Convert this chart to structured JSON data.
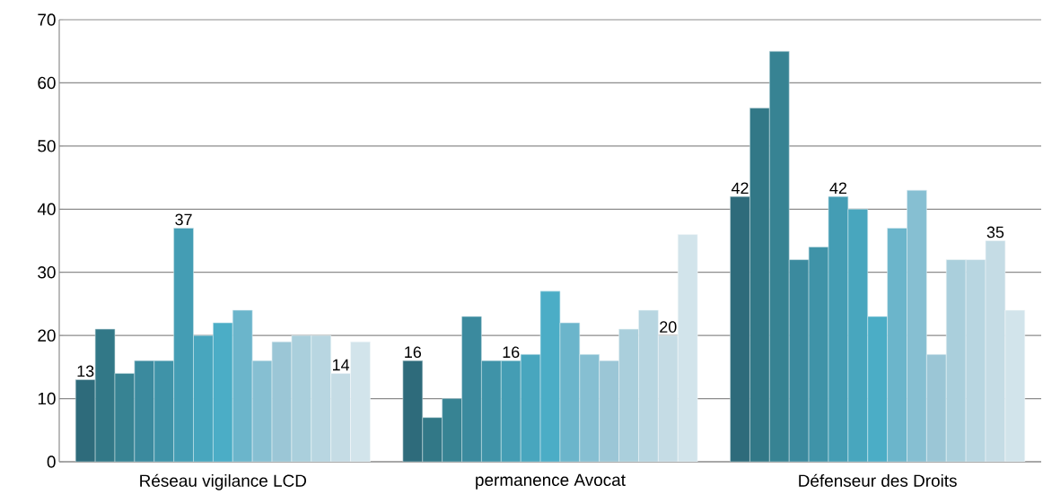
{
  "chart_data": {
    "type": "bar",
    "categories": [
      "Réseau vigilance LCD",
      "permanence Avocat",
      "Défenseur des Droits"
    ],
    "series": [
      {
        "color": "#2e6b7b",
        "values": [
          13,
          16,
          42
        ],
        "value_labels": [
          "13",
          "16",
          "42"
        ]
      },
      {
        "color": "#327887",
        "values": [
          21,
          7,
          56
        ]
      },
      {
        "color": "#378393",
        "values": [
          14,
          10,
          65
        ]
      },
      {
        "color": "#3b8a9e",
        "values": [
          16,
          23,
          32
        ]
      },
      {
        "color": "#3f93a8",
        "values": [
          16,
          16,
          34
        ]
      },
      {
        "color": "#449db4",
        "values": [
          37,
          16,
          42
        ],
        "value_labels": [
          "37",
          "16",
          "42"
        ]
      },
      {
        "color": "#48a6be",
        "values": [
          20,
          17,
          40
        ]
      },
      {
        "color": "#4badc6",
        "values": [
          22,
          27,
          23
        ]
      },
      {
        "color": "#6bb5cb",
        "values": [
          24,
          22,
          37
        ]
      },
      {
        "color": "#86bfd2",
        "values": [
          16,
          17,
          43
        ]
      },
      {
        "color": "#9bc6d6",
        "values": [
          19,
          16,
          17
        ]
      },
      {
        "color": "#aacfdc",
        "values": [
          20,
          21,
          32
        ]
      },
      {
        "color": "#b8d6e1",
        "values": [
          20,
          24,
          32
        ]
      },
      {
        "color": "#c5dce5",
        "values": [
          14,
          20,
          35
        ],
        "value_labels": [
          "14",
          "20",
          "35"
        ]
      },
      {
        "color": "#d2e4eb",
        "values": [
          19,
          36,
          24
        ]
      }
    ],
    "ylim": [
      0,
      70
    ],
    "yticks": [
      0,
      10,
      20,
      30,
      40,
      50,
      60,
      70
    ],
    "grid": "y"
  }
}
